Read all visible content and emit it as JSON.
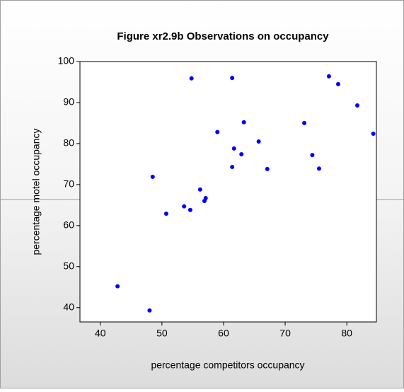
{
  "chart_data": {
    "type": "scatter",
    "title": "Figure xr2.9b Observations on occupancy",
    "x_label": "percentage competitors occupancy",
    "y_label": "percentage motel occupancy",
    "color": "#0000ff",
    "x": [
      42.8,
      48.0,
      48.5,
      50.7,
      53.6,
      54.6,
      54.8,
      56.2,
      56.9,
      57.1,
      59.0,
      61.4,
      61.4,
      61.7,
      62.9,
      63.3,
      65.7,
      67.1,
      73.1,
      74.4,
      75.5,
      77.1,
      78.6,
      81.7,
      84.3
    ],
    "y": [
      45.2,
      39.3,
      71.9,
      62.9,
      64.7,
      63.8,
      95.9,
      68.8,
      66.0,
      66.7,
      82.8,
      96.0,
      74.3,
      78.8,
      77.4,
      85.2,
      80.5,
      73.8,
      85.0,
      77.2,
      73.9,
      96.4,
      94.5,
      89.3,
      82.4
    ],
    "xlim": [
      36.7,
      84.8
    ],
    "xticks": [
      40,
      50,
      60,
      70,
      80
    ],
    "ylim": [
      36.5,
      100
    ],
    "yticks": [
      40,
      50,
      60,
      70,
      80,
      90,
      100
    ],
    "grid": false
  }
}
